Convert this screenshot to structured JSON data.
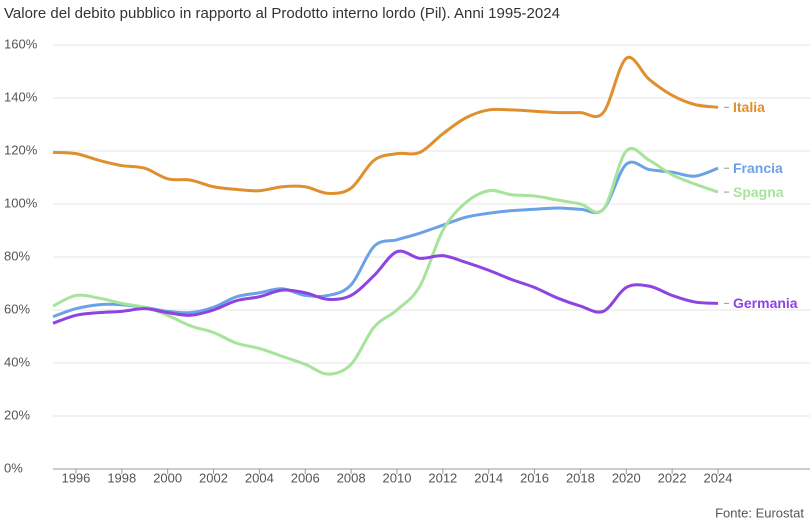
{
  "chart_data": {
    "type": "line",
    "title": "Valore del debito pubblico in rapporto al Prodotto interno lordo (Pil). Anni 1995-2024",
    "source": "Fonte: Eurostat",
    "x": [
      1995,
      1996,
      1997,
      1998,
      1999,
      2000,
      2001,
      2002,
      2003,
      2004,
      2005,
      2006,
      2007,
      2008,
      2009,
      2010,
      2011,
      2012,
      2013,
      2014,
      2015,
      2016,
      2017,
      2018,
      2019,
      2020,
      2021,
      2022,
      2023,
      2024
    ],
    "xlim": [
      1995,
      2024
    ],
    "xticks": [
      1996,
      1998,
      2000,
      2002,
      2004,
      2006,
      2008,
      2010,
      2012,
      2014,
      2016,
      2018,
      2020,
      2022,
      2024
    ],
    "ylim": [
      0,
      160
    ],
    "yticks": [
      {
        "value": 0,
        "label": "0%"
      },
      {
        "value": 20,
        "label": "20%"
      },
      {
        "value": 40,
        "label": "40%"
      },
      {
        "value": 60,
        "label": "60%"
      },
      {
        "value": 80,
        "label": "80%"
      },
      {
        "value": 100,
        "label": "100%"
      },
      {
        "value": 120,
        "label": "120%"
      },
      {
        "value": 140,
        "label": "140%"
      },
      {
        "value": 160,
        "label": "160%"
      }
    ],
    "grid": true,
    "series": [
      {
        "name": "Italia",
        "color": "#e08f2e",
        "values": [
          119.5,
          119,
          116.5,
          114.5,
          113.5,
          109.5,
          109,
          106.5,
          105.5,
          105,
          106.5,
          106.5,
          104,
          106,
          116.5,
          119,
          119.5,
          126.5,
          132.5,
          135.5,
          135.5,
          135,
          134.5,
          134.5,
          134.5,
          155,
          147,
          141,
          137.5,
          136.5
        ]
      },
      {
        "name": "Francia",
        "color": "#6ba1e6",
        "values": [
          57.5,
          60.5,
          62,
          62,
          61,
          59.5,
          59,
          61,
          65,
          66.5,
          68,
          65.5,
          65.5,
          69.5,
          84,
          86.5,
          89,
          92,
          95,
          96.5,
          97.5,
          98,
          98.5,
          98,
          98,
          115,
          113,
          112,
          110.5,
          113.5
        ]
      },
      {
        "name": "Spagna",
        "color": "#a6e39b",
        "values": [
          61.5,
          65.5,
          64.5,
          62.5,
          61,
          58,
          54,
          51.5,
          47.5,
          45.5,
          42.5,
          39.5,
          35.8,
          39.5,
          53.5,
          60,
          69,
          90,
          100.5,
          105,
          103.5,
          103,
          101.5,
          100,
          98,
          120,
          116.5,
          111,
          107.5,
          104.5
        ]
      },
      {
        "name": "Germania",
        "color": "#8e44e0",
        "values": [
          55,
          58,
          59,
          59.5,
          60.5,
          59,
          58,
          60,
          63.5,
          65,
          67.5,
          66.5,
          64,
          65.5,
          73,
          82,
          79.5,
          80.5,
          78,
          75,
          71.5,
          68.5,
          64.5,
          61.5,
          59.5,
          68.5,
          69,
          65.5,
          63,
          62.5
        ]
      }
    ]
  }
}
